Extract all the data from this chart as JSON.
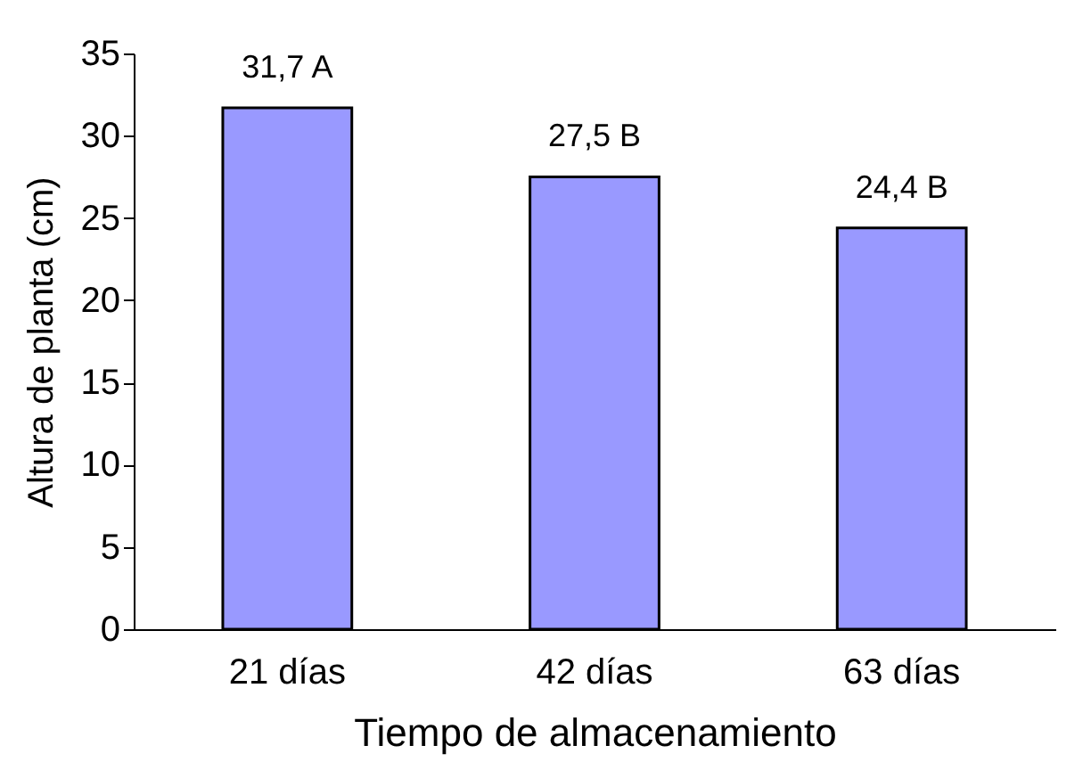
{
  "chart_data": {
    "type": "bar",
    "xlabel": "Tiempo de almacenamiento",
    "ylabel": "Altura de planta (cm)",
    "categories": [
      "21 días",
      "42 días",
      "63 días"
    ],
    "values": [
      31.7,
      27.5,
      24.4
    ],
    "value_labels": [
      "31,7 A",
      "27,5 B",
      "24,4 B"
    ],
    "color": "#9999ff",
    "ylim": [
      0,
      35
    ],
    "yticks": [
      0,
      5,
      10,
      15,
      20,
      25,
      30,
      35
    ]
  }
}
